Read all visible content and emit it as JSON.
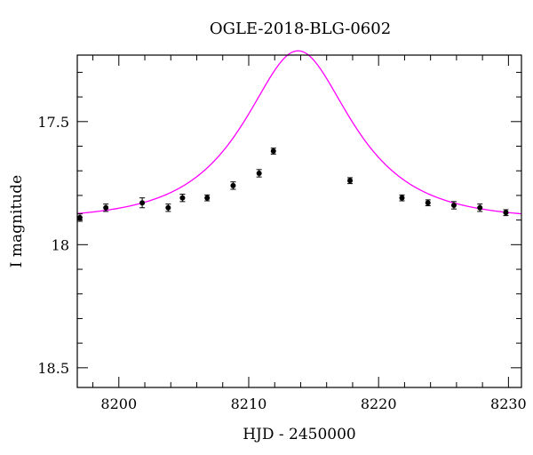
{
  "chart_data": {
    "type": "scatter",
    "title": "OGLE-2018-BLG-0602",
    "xlabel": "HJD - 2450000",
    "ylabel": "I magnitude",
    "xlim": [
      8196.8,
      8231
    ],
    "ylim": [
      18.58,
      17.23
    ],
    "y_inverted": true,
    "grid": false,
    "x_major_ticks": [
      8200,
      8210,
      8220,
      8230
    ],
    "x_tick_labels": [
      "8200",
      "8210",
      "8220",
      "8230"
    ],
    "y_major_ticks": [
      17.5,
      18.0,
      18.5
    ],
    "y_tick_labels": [
      "17.5",
      "18",
      "18.5"
    ],
    "series": [
      {
        "kind": "data",
        "marker": "filled-circle-with-errorbars",
        "color": "#000000",
        "points": [
          {
            "x": 8197.0,
            "y": 17.89,
            "err": 0.015
          },
          {
            "x": 8199.0,
            "y": 17.85,
            "err": 0.015
          },
          {
            "x": 8201.8,
            "y": 17.83,
            "err": 0.02
          },
          {
            "x": 8203.8,
            "y": 17.85,
            "err": 0.015
          },
          {
            "x": 8204.9,
            "y": 17.81,
            "err": 0.015
          },
          {
            "x": 8206.8,
            "y": 17.81,
            "err": 0.012
          },
          {
            "x": 8208.8,
            "y": 17.76,
            "err": 0.015
          },
          {
            "x": 8210.8,
            "y": 17.71,
            "err": 0.015
          },
          {
            "x": 8211.9,
            "y": 17.62,
            "err": 0.012
          },
          {
            "x": 8217.8,
            "y": 17.74,
            "err": 0.012
          },
          {
            "x": 8221.8,
            "y": 17.81,
            "err": 0.012
          },
          {
            "x": 8223.8,
            "y": 17.83,
            "err": 0.012
          },
          {
            "x": 8225.8,
            "y": 17.84,
            "err": 0.015
          },
          {
            "x": 8227.8,
            "y": 17.85,
            "err": 0.015
          },
          {
            "x": 8229.8,
            "y": 17.87,
            "err": 0.012
          }
        ]
      },
      {
        "kind": "model",
        "color": "#ff00ff",
        "t0": 8213.8,
        "tE": 6.5,
        "u0": 0.6,
        "I_base": 17.9
      }
    ]
  }
}
